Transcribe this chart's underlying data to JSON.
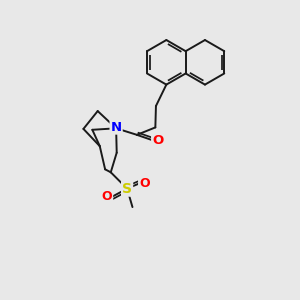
{
  "background_color": "#e8e8e8",
  "bond_color": "#1a1a1a",
  "bond_width": 1.4,
  "atom_colors": {
    "N": "#0000ff",
    "O": "#ff0000",
    "S": "#cccc00",
    "C": "#1a1a1a"
  },
  "figsize": [
    3.0,
    3.0
  ],
  "dpi": 100,
  "xlim": [
    0,
    10
  ],
  "ylim": [
    0,
    10
  ]
}
